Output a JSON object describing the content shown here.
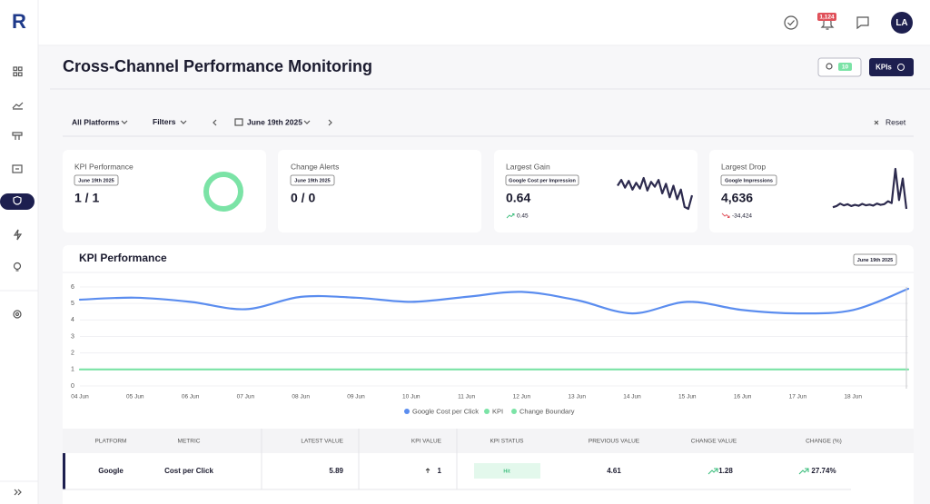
{
  "sidebar": {
    "logo": "R"
  },
  "topbar": {
    "notifications": "1,124",
    "avatar": "LA"
  },
  "header": {
    "title": "Cross-Channel Performance Monitoring",
    "insights_count": "10",
    "kpis_button": "KPIs"
  },
  "filters": {
    "platforms": "All Platforms",
    "filters": "Filters",
    "date": "June 19th 2025",
    "reset": "Reset"
  },
  "cards": [
    {
      "title": "KPI Performance",
      "date": "June 19th 2025",
      "value": "1 / 1"
    },
    {
      "title": "Change Alerts",
      "date": "June 19th 2025",
      "value": "0 / 0"
    },
    {
      "title": "Largest Gain",
      "tag": "Google Cost per Impression",
      "value": "0.64",
      "delta": "0.45",
      "sparkline": [
        0.74,
        0.8,
        0.72,
        0.79,
        0.7,
        0.77,
        0.71,
        0.82,
        0.69,
        0.78,
        0.73,
        0.8,
        0.66,
        0.76,
        0.62,
        0.74,
        0.6,
        0.7,
        0.52,
        0.5,
        0.64
      ]
    },
    {
      "title": "Largest Drop",
      "tag": "Google Impressions",
      "value": "4,636",
      "delta": "-34,424",
      "sparkline": [
        6000,
        7000,
        9000,
        7500,
        8500,
        7000,
        8000,
        7200,
        8800,
        7600,
        8200,
        7400,
        9000,
        8000,
        8600,
        11000,
        9500,
        38000,
        12000,
        30000,
        4636
      ]
    }
  ],
  "panel": {
    "title": "KPI Performance",
    "date": "June 19th 2025"
  },
  "chart_data": {
    "type": "line",
    "categories": [
      "04 Jun",
      "05 Jun",
      "06 Jun",
      "07 Jun",
      "08 Jun",
      "09 Jun",
      "10 Jun",
      "11 Jun",
      "12 Jun",
      "13 Jun",
      "14 Jun",
      "15 Jun",
      "16 Jun",
      "17 Jun",
      "18 Jun",
      null
    ],
    "series": [
      {
        "name": "Google Cost per Click",
        "color": "#5b8def",
        "values": [
          5.23,
          5.35,
          5.1,
          4.65,
          5.4,
          5.35,
          5.1,
          5.4,
          5.7,
          5.2,
          4.4,
          5.1,
          4.6,
          4.4,
          4.6,
          5.89
        ]
      },
      {
        "name": "KPI",
        "color": "#7be3a6",
        "values": [
          1,
          1,
          1,
          1,
          1,
          1,
          1,
          1,
          1,
          1,
          1,
          1,
          1,
          1,
          1,
          1
        ]
      },
      {
        "name": "Change Boundary",
        "color": "#7be3a6",
        "values": [
          null,
          null,
          null,
          null,
          null,
          null,
          null,
          null,
          null,
          null,
          null,
          null,
          null,
          null,
          null,
          null
        ]
      }
    ],
    "ylim": [
      0,
      6
    ],
    "yticks": [
      0,
      1,
      2,
      3,
      4,
      5,
      6
    ],
    "grid": true
  },
  "table": {
    "headers": [
      "PLATFORM",
      "METRIC",
      "LATEST VALUE",
      "KPI VALUE",
      "KPI STATUS",
      "PREVIOUS VALUE",
      "CHANGE VALUE",
      "CHANGE (%)"
    ],
    "rows": [
      [
        "Google",
        "Cost per Click",
        "5.89",
        "1",
        "Hit",
        "4.61",
        "1.28",
        "27.74%"
      ]
    ]
  }
}
